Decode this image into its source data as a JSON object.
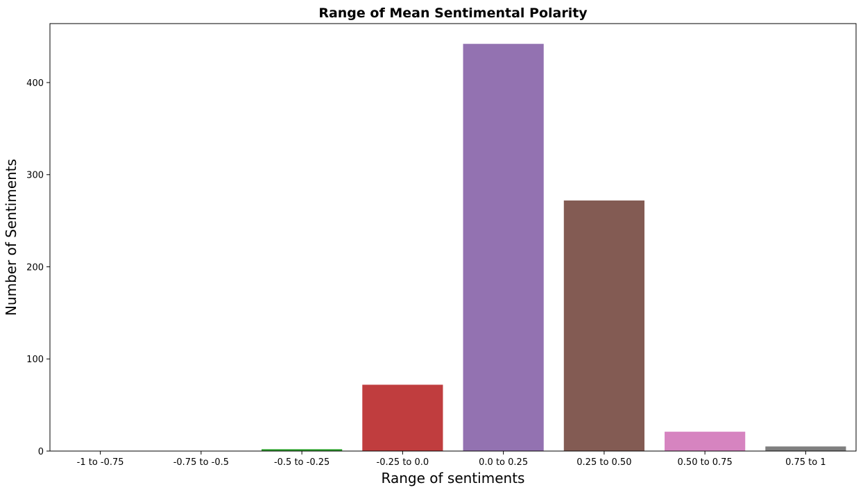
{
  "chart_data": {
    "type": "bar",
    "title": "Range of Mean Sentimental Polarity",
    "xlabel": "Range of sentiments",
    "ylabel": "Number of Sentiments",
    "categories": [
      "-1 to -0.75",
      "-0.75 to -0.5",
      "-0.5 to -0.25",
      "-0.25 to 0.0",
      "0.0 to 0.25",
      "0.25 to 0.50",
      "0.50 to 0.75",
      "0.75 to 1"
    ],
    "values": [
      0,
      0,
      2,
      72,
      442,
      272,
      21,
      5
    ],
    "colors": [
      "#1f77b4",
      "#ff7f0e",
      "#2ca02c",
      "#c03d3e",
      "#9372b1",
      "#835b53",
      "#d684c0",
      "#7f7f7f"
    ],
    "yticks": [
      0,
      100,
      200,
      300,
      400
    ],
    "ylim": [
      0,
      464
    ],
    "grid": false,
    "legend": "none"
  }
}
